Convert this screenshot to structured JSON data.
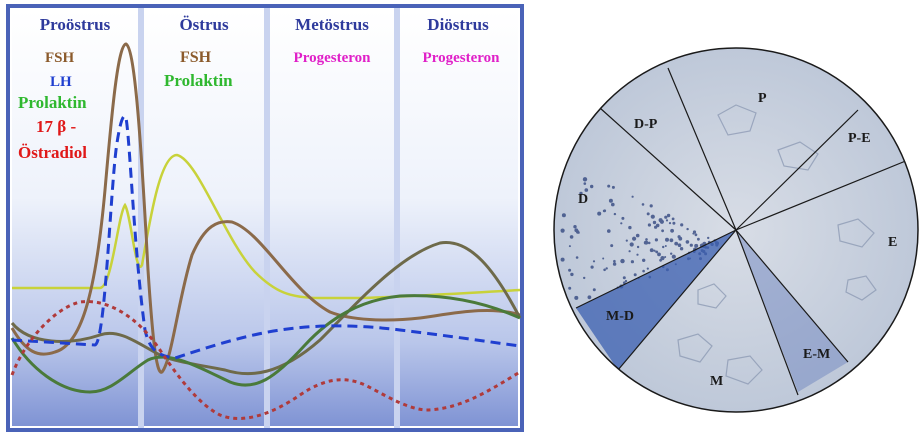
{
  "phases": [
    {
      "name": "Proöstrus",
      "hormones": [
        {
          "label": "FSH",
          "color": "#8B5A2B"
        },
        {
          "label": "LH",
          "color": "#1f3fd0"
        },
        {
          "label": "Prolaktin",
          "color": "#2fb82f"
        },
        {
          "label": "17 β -",
          "color": "#e01818"
        },
        {
          "label": "Östradiol",
          "color": "#e01818"
        }
      ]
    },
    {
      "name": "Östrus",
      "hormones": [
        {
          "label": "FSH",
          "color": "#8B5A2B"
        },
        {
          "label": "Prolaktin",
          "color": "#2fb82f"
        }
      ]
    },
    {
      "name": "Metöstrus",
      "hormones": [
        {
          "label": "Progesteron",
          "color": "#e020c8"
        }
      ]
    },
    {
      "name": "Diöstrus",
      "hormones": [
        {
          "label": "Progesteron",
          "color": "#e020c8"
        }
      ]
    }
  ],
  "colors": {
    "phase_title": "#2e3a9c",
    "frame": "#4a63b8",
    "fsh": "#8B5A2B",
    "lh": "#1f3fd0",
    "prolaktin": "#2fb82f",
    "prolaktin_curve": "#c8d23a",
    "estradiol": "#b03a3a",
    "progesteron_curve": "#6e6a4a",
    "fsh_curve": "#6a8e3a",
    "stain_blue": "#3b5fb0"
  },
  "cytology": {
    "sectors": [
      "P",
      "P-E",
      "E",
      "E-M",
      "M",
      "M-D",
      "D",
      "D-P"
    ]
  }
}
